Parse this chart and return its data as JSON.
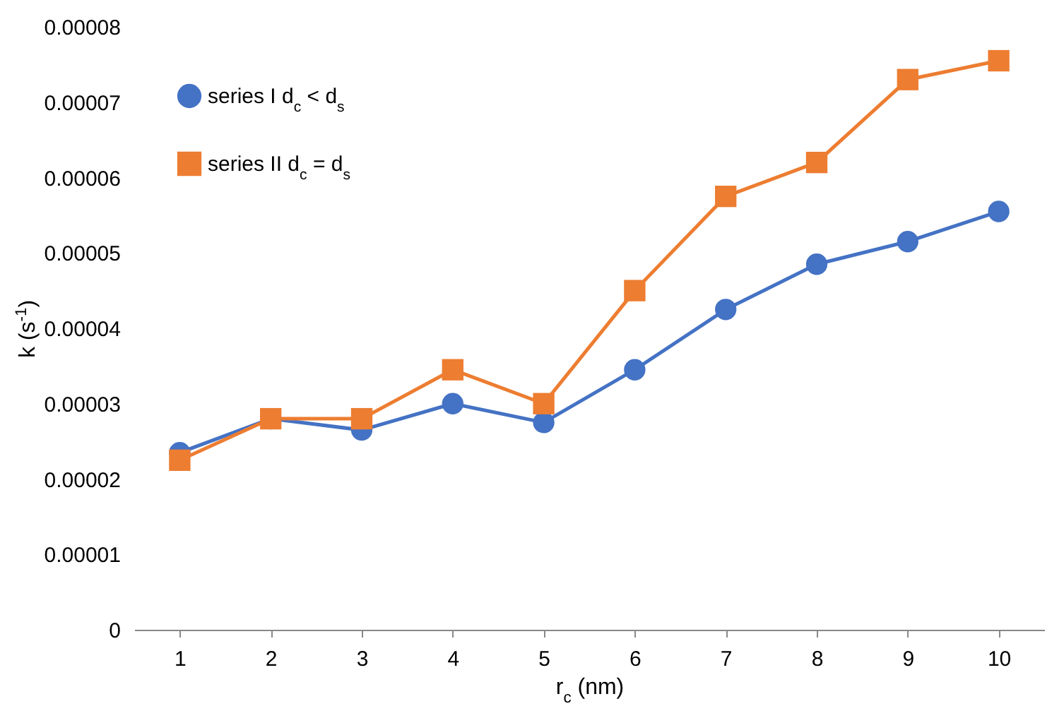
{
  "chart_data": {
    "type": "line",
    "xlabel": "r$_{c}$ (nm)",
    "ylabel": "k (s$^{-1}$)",
    "categories": [
      "1",
      "2",
      "3",
      "4",
      "5",
      "6",
      "7",
      "8",
      "9",
      "10"
    ],
    "series": [
      {
        "name": "series I d$_{c}$ < d$_{s}$",
        "color": "#4472c4",
        "marker": "circle",
        "values": [
          2.35e-05,
          2.8e-05,
          2.65e-05,
          3e-05,
          2.75e-05,
          3.45e-05,
          4.25e-05,
          4.85e-05,
          5.15e-05,
          5.55e-05
        ]
      },
      {
        "name": "series II d$_{c}$ = d$_{s}$",
        "color": "#ed7d31",
        "marker": "square",
        "values": [
          2.25e-05,
          2.8e-05,
          2.8e-05,
          3.45e-05,
          3e-05,
          4.5e-05,
          5.75e-05,
          6.2e-05,
          7.3e-05,
          7.55e-05
        ]
      }
    ],
    "ylim": [
      0,
      8e-05
    ],
    "yticks": [
      {
        "value": 0,
        "label": "0"
      },
      {
        "value": 1e-05,
        "label": "0.00001"
      },
      {
        "value": 2e-05,
        "label": "0.00002"
      },
      {
        "value": 3e-05,
        "label": "0.00003"
      },
      {
        "value": 4e-05,
        "label": "0.00004"
      },
      {
        "value": 5e-05,
        "label": "0.00005"
      },
      {
        "value": 6e-05,
        "label": "0.00006"
      },
      {
        "value": 7e-05,
        "label": "0.00007"
      },
      {
        "value": 8e-05,
        "label": "0.00008"
      }
    ],
    "grid": false,
    "legend": "top left",
    "line_style": "solid"
  }
}
